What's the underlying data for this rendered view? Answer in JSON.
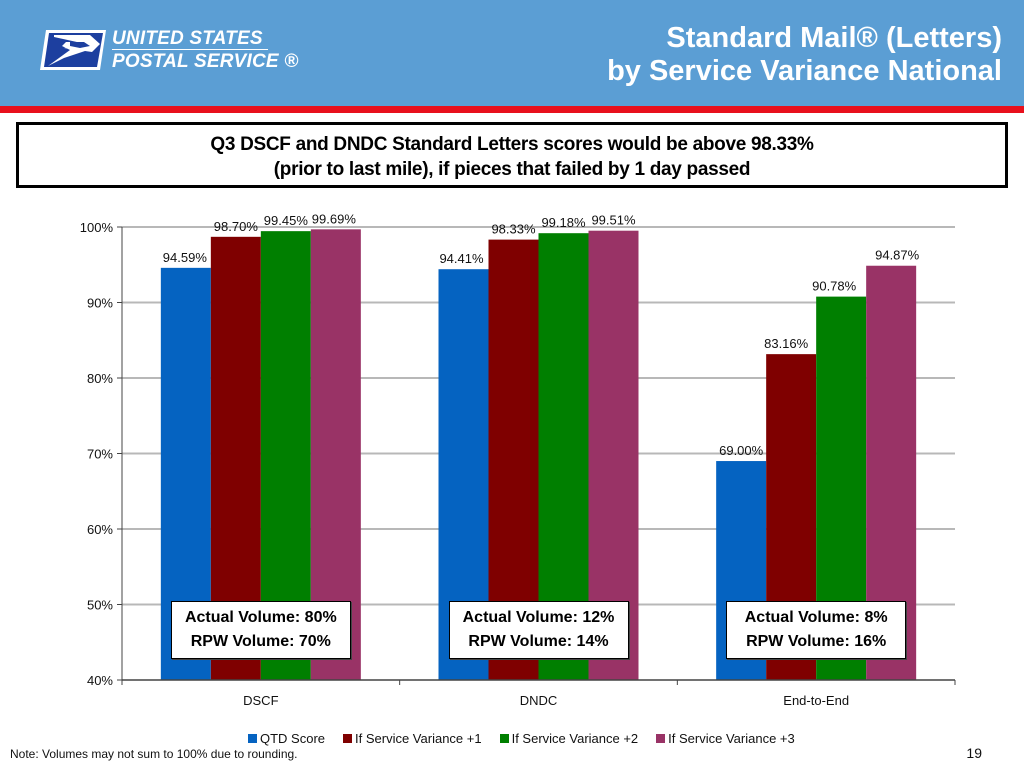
{
  "header": {
    "logo": {
      "icon": "eagle-logo-icon",
      "line1": "UNITED STATES",
      "line2": "POSTAL SERVICE ®"
    },
    "title_line1": "Standard Mail® (Letters)",
    "title_line2": "by Service Variance National",
    "colors": {
      "banner": "#5b9ed4",
      "rule": "#e8101c"
    }
  },
  "callout": {
    "line1": "Q3 DSCF and DNDC Standard Letters scores would be above 98.33%",
    "line2": "(prior to last mile), if pieces that failed by 1 day passed"
  },
  "chart_data": {
    "type": "bar",
    "title": "",
    "xlabel": "",
    "ylabel": "",
    "categories": [
      "DSCF",
      "DNDC",
      "End-to-End"
    ],
    "ylim": [
      40,
      100
    ],
    "yticks": [
      40,
      50,
      60,
      70,
      80,
      90,
      100
    ],
    "ytick_labels": [
      "40%",
      "50%",
      "60%",
      "70%",
      "80%",
      "90%",
      "100%"
    ],
    "grid": true,
    "legend_position": "bottom",
    "series": [
      {
        "name": "QTD Score",
        "color": "#0563c1",
        "values": [
          94.59,
          94.41,
          69.0
        ],
        "labels": [
          "94.59%",
          "94.41%",
          "69.00%"
        ]
      },
      {
        "name": "If Service Variance +1",
        "color": "#7f0000",
        "values": [
          98.7,
          98.33,
          83.16
        ],
        "labels": [
          "98.70%",
          "98.33%",
          "83.16%"
        ]
      },
      {
        "name": "If Service Variance +2",
        "color": "#007f00",
        "values": [
          99.45,
          99.18,
          90.78
        ],
        "labels": [
          "99.45%",
          "99.18%",
          "90.78%"
        ]
      },
      {
        "name": "If Service Variance +3",
        "color": "#993366",
        "values": [
          99.69,
          99.51,
          94.87
        ],
        "labels": [
          "99.69%",
          "99.51%",
          "94.87%"
        ]
      }
    ],
    "annotations": [
      {
        "category": "DSCF",
        "line1": "Actual Volume: 80%",
        "line2": "RPW Volume: 70%"
      },
      {
        "category": "DNDC",
        "line1": "Actual Volume: 12%",
        "line2": "RPW Volume: 14%"
      },
      {
        "category": "End-to-End",
        "line1": "Actual Volume: 8%",
        "line2": "RPW Volume: 16%"
      }
    ]
  },
  "footer": {
    "note": "Note: Volumes may not sum to 100% due to rounding.",
    "page_number": "19"
  }
}
